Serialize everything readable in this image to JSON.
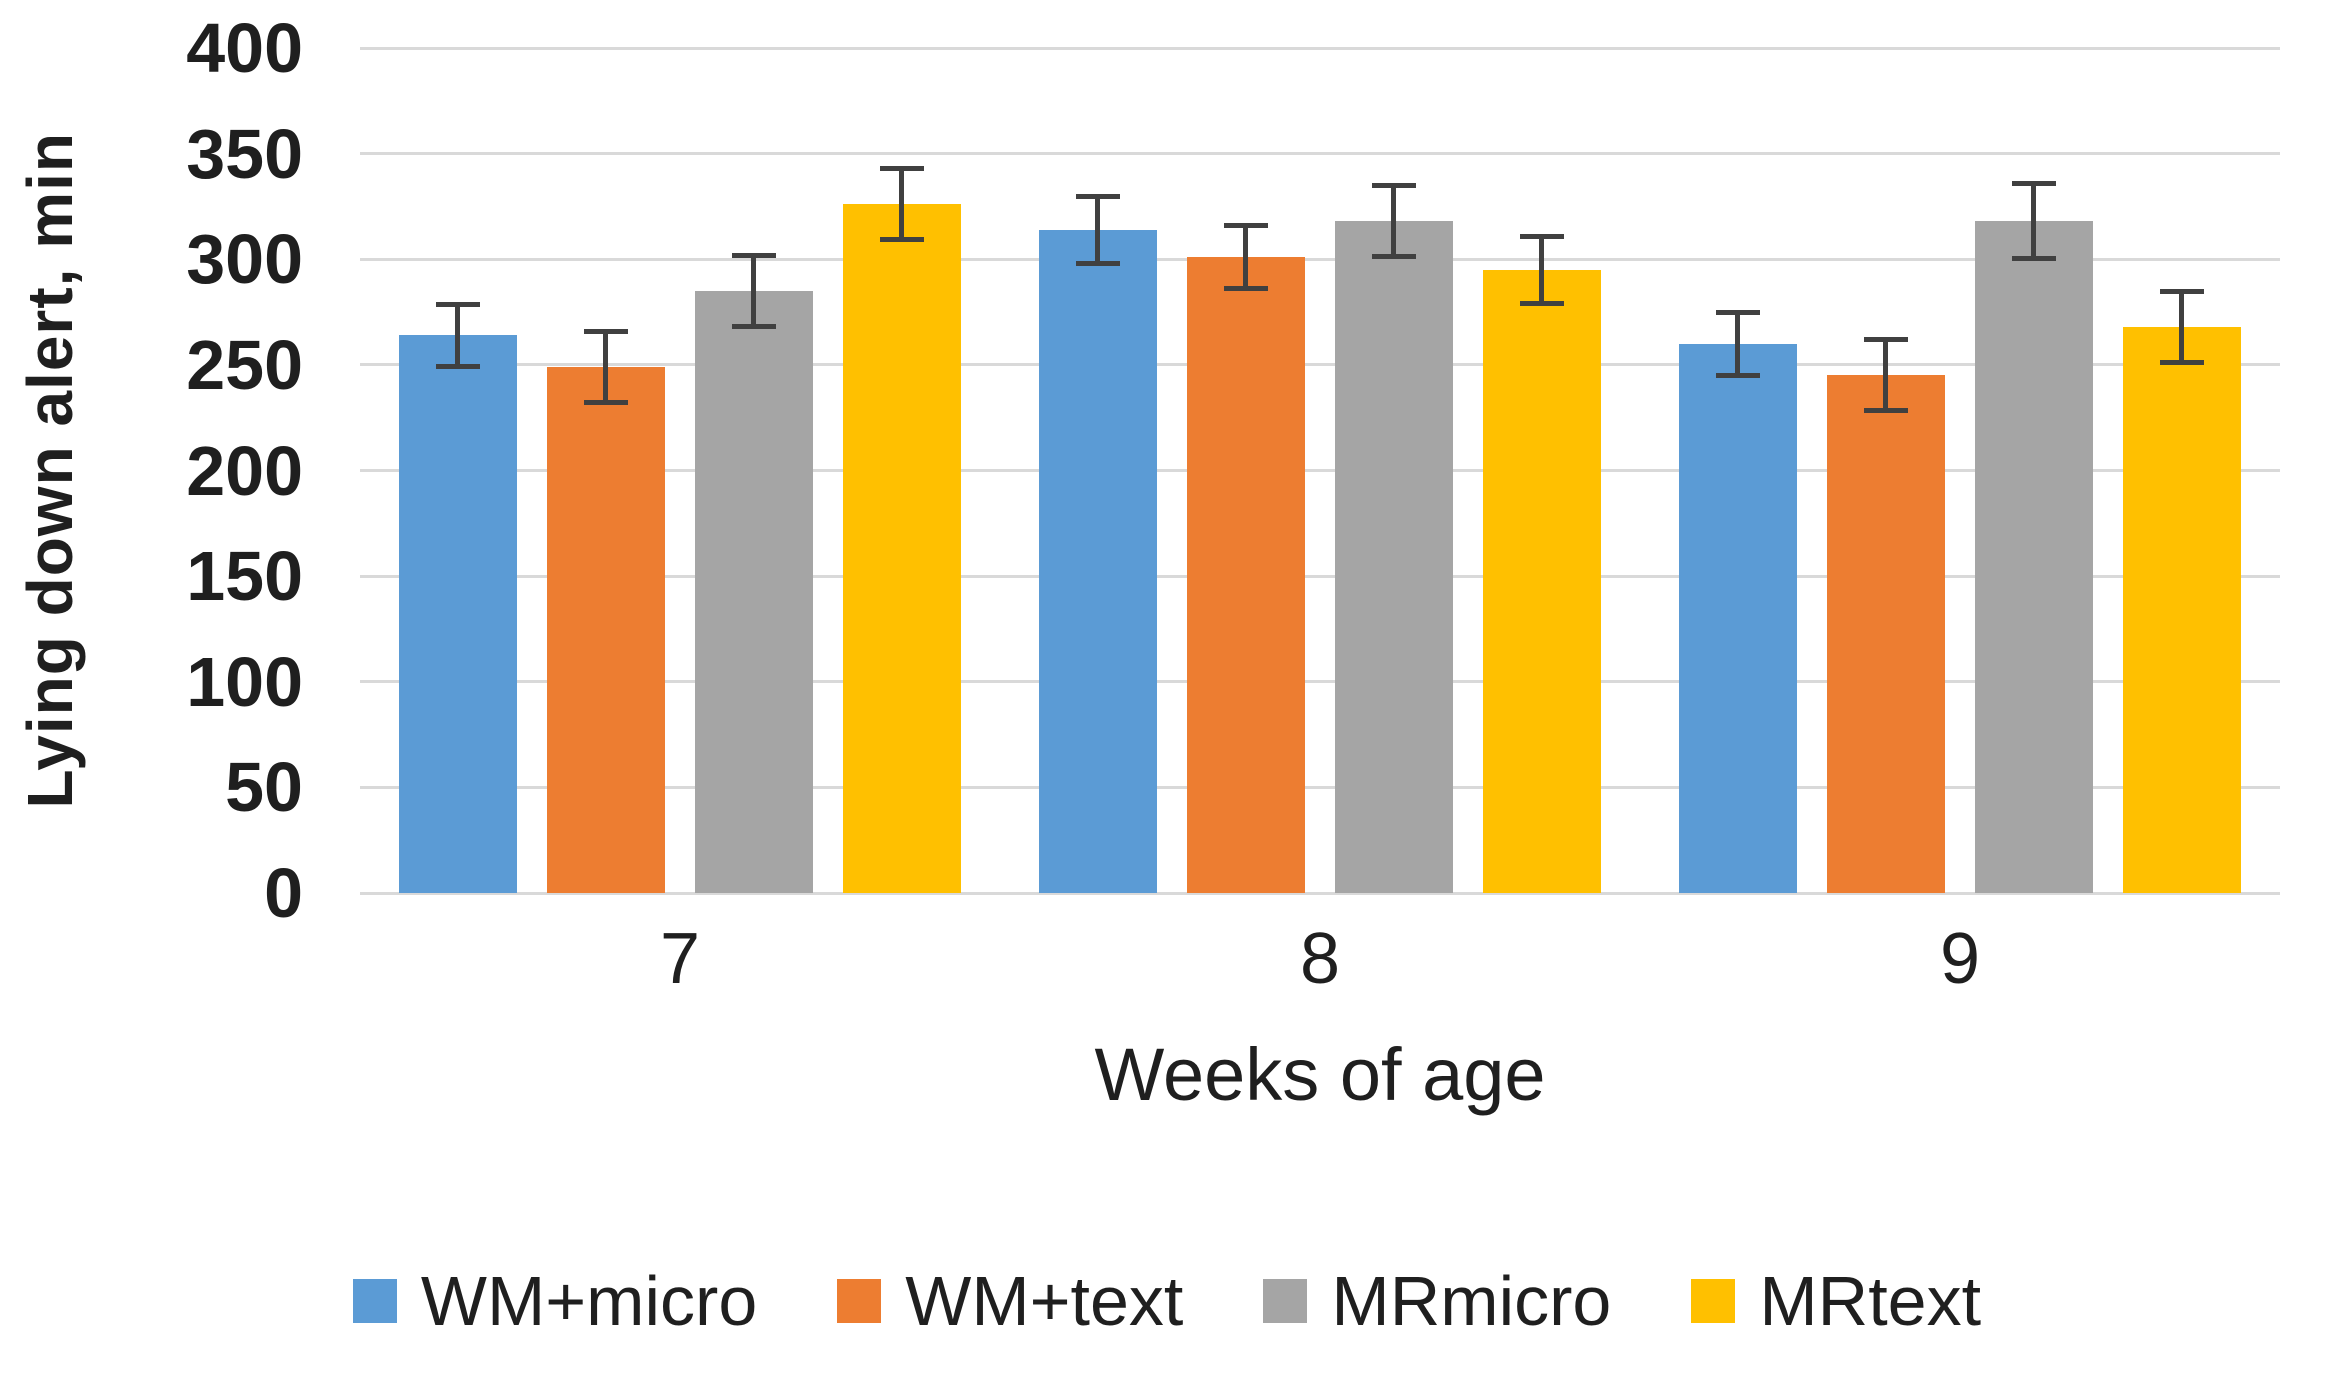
{
  "chart_data": {
    "type": "bar",
    "title": "",
    "xlabel": "Weeks of age",
    "ylabel": "Lying down alert, min",
    "categories": [
      "7",
      "8",
      "9"
    ],
    "series": [
      {
        "name": "WM+micro",
        "color": "#5B9BD5",
        "values": [
          264,
          314,
          260
        ],
        "errors": [
          16,
          17,
          16
        ]
      },
      {
        "name": "WM+text",
        "color": "#ED7D31",
        "values": [
          249,
          301,
          245
        ],
        "errors": [
          18,
          16,
          18
        ]
      },
      {
        "name": "MRmicro",
        "color": "#A5A5A5",
        "values": [
          285,
          318,
          318
        ],
        "errors": [
          18,
          18,
          19
        ]
      },
      {
        "name": "MRtext",
        "color": "#FFC000",
        "values": [
          326,
          295,
          268
        ],
        "errors": [
          18,
          17,
          18
        ]
      }
    ],
    "ylim": [
      0,
      400
    ],
    "yticks": [
      0,
      50,
      100,
      150,
      200,
      250,
      300,
      350,
      400
    ],
    "grid": true,
    "legend_position": "bottom",
    "colors": {
      "gridline": "#D9D9D9",
      "error_bar": "#404040",
      "text": "#1F1F1F"
    }
  }
}
